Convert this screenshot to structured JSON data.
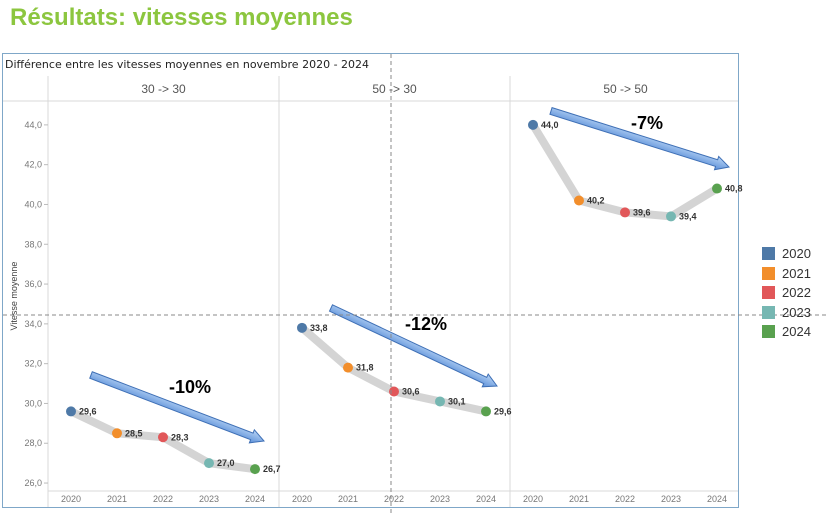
{
  "slide_title": "Résultats: vitesses moyennes",
  "chart_data": {
    "type": "line",
    "title": "Différence entre les vitesses moyennes en novembre 2020 - 2024",
    "ylabel": "Vitesse moyenne",
    "ylim": [
      25.6,
      45.2
    ],
    "yticks": [
      "26,0",
      "28,0",
      "30,0",
      "32,0",
      "34,0",
      "36,0",
      "38,0",
      "40,0",
      "42,0",
      "44,0"
    ],
    "ytick_values": [
      26,
      28,
      30,
      32,
      34,
      36,
      38,
      40,
      42,
      44
    ],
    "years": [
      "2020",
      "2021",
      "2022",
      "2023",
      "2024"
    ],
    "year_colors": {
      "2020": "#4e79a7",
      "2021": "#f28e2b",
      "2022": "#e15759",
      "2023": "#76b7b2",
      "2024": "#59a14f"
    },
    "legend_position": "right",
    "panels": [
      {
        "header": "30 -> 30",
        "values": [
          29.6,
          28.5,
          28.3,
          27.0,
          26.7
        ],
        "labels": [
          "29,6",
          "28,5",
          "28,3",
          "27,0",
          "26,7"
        ],
        "change": "-10%"
      },
      {
        "header": "50 -> 30",
        "values": [
          33.8,
          31.8,
          30.6,
          30.1,
          29.6
        ],
        "labels": [
          "33,8",
          "31,8",
          "30,6",
          "30,1",
          "29,6"
        ],
        "change": "-12%"
      },
      {
        "header": "50 -> 50",
        "values": [
          44.0,
          40.2,
          39.6,
          39.4,
          40.8
        ],
        "labels": [
          "44,0",
          "40,2",
          "39,6",
          "39,4",
          "40,8"
        ],
        "change": "-7%"
      }
    ]
  }
}
